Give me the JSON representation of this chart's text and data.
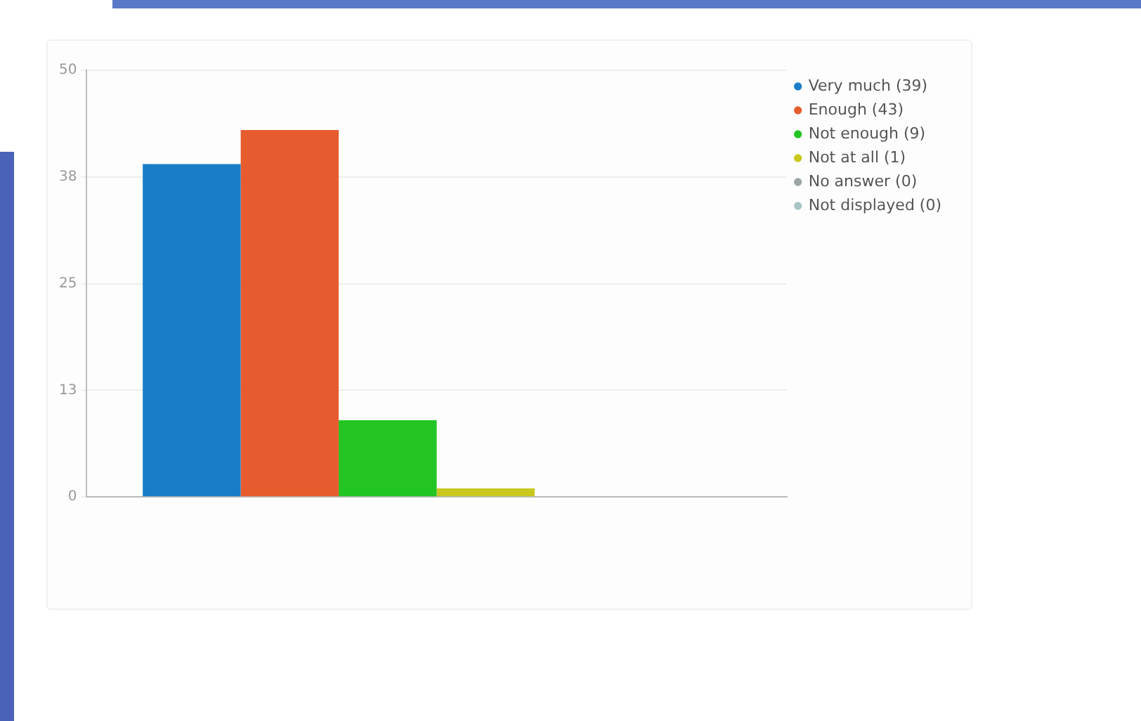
{
  "chart_data": {
    "type": "bar",
    "categories": [
      null
    ],
    "series": [
      {
        "name": "Very much (39)",
        "color": "#1a7dc8",
        "values": [
          39
        ]
      },
      {
        "name": "Enough (43)",
        "color": "#e65c2e",
        "values": [
          43
        ]
      },
      {
        "name": "Not enough (9)",
        "color": "#22c522",
        "values": [
          9
        ]
      },
      {
        "name": "Not at all (1)",
        "color": "#c8c81e",
        "values": [
          1
        ]
      },
      {
        "name": "No answer (0)",
        "color": "#9aa5a5",
        "values": [
          0
        ]
      },
      {
        "name": "Not displayed (0)",
        "color": "#a8c4c4",
        "values": [
          0
        ]
      }
    ],
    "ylim": [
      0,
      50
    ],
    "yticks": [
      0,
      {
        "value": 12.5,
        "label": "13"
      },
      25,
      {
        "value": 37.5,
        "label": "38"
      },
      50
    ],
    "grid": "y",
    "legend": "top right"
  }
}
